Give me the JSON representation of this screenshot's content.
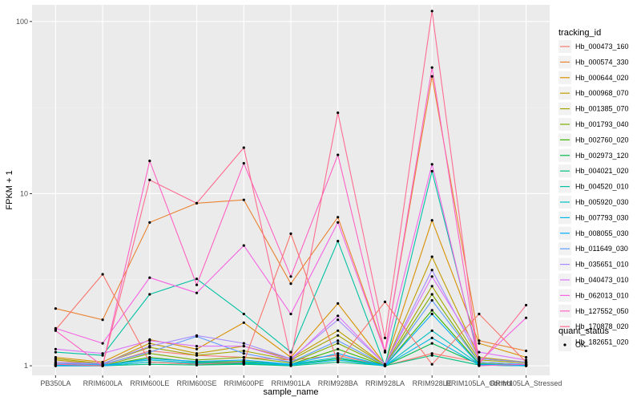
{
  "chart_data": {
    "type": "line",
    "xlabel": "sample_name",
    "ylabel": "FPKM + 1",
    "yscale": "log10",
    "ylim": [
      0.88,
      125
    ],
    "yticks": [
      1,
      10,
      100
    ],
    "ytick_labels": [
      "1",
      "10",
      "100"
    ],
    "background": "#ebebeb",
    "grid": true,
    "legend_position": "right",
    "categories": [
      "PB350LA",
      "RRIM600LA",
      "RRIM600LE",
      "RRIM600SE",
      "RRIM600PE",
      "RRIM901LA",
      "RRIM928BA",
      "RRIM928LA",
      "RRIM928LE",
      "RRIM105LA_Control",
      "RRIM105LA_Stressed"
    ],
    "series_legend_title": "tracking_id",
    "series": [
      {
        "name": "Hb_000473_160",
        "color": "#F8766D",
        "values": [
          1.05,
          1.01,
          1.22,
          1.15,
          1.12,
          1.08,
          1.15,
          1.0,
          1.18,
          1.05,
          1.02
        ]
      },
      {
        "name": "Hb_000574_330",
        "color": "#EA8331",
        "values": [
          2.15,
          1.85,
          6.8,
          8.8,
          9.2,
          3.0,
          7.3,
          1.22,
          48.0,
          1.4,
          1.22
        ]
      },
      {
        "name": "Hb_000644_020",
        "color": "#D89000",
        "values": [
          1.12,
          1.05,
          1.42,
          1.25,
          1.78,
          1.12,
          2.3,
          1.02,
          7.0,
          1.35,
          1.12
        ]
      },
      {
        "name": "Hb_000968_070",
        "color": "#C09B00",
        "values": [
          1.08,
          1.02,
          1.35,
          1.18,
          1.3,
          1.1,
          1.6,
          1.01,
          4.3,
          1.12,
          1.05
        ]
      },
      {
        "name": "Hb_001385_070",
        "color": "#A3A500",
        "values": [
          1.1,
          1.03,
          1.28,
          1.15,
          1.22,
          1.08,
          1.5,
          1.01,
          2.9,
          1.08,
          1.04
        ]
      },
      {
        "name": "Hb_001793_040",
        "color": "#7CAE00",
        "values": [
          1.02,
          1.0,
          1.18,
          1.08,
          1.12,
          1.04,
          1.35,
          1.0,
          2.6,
          1.05,
          1.02
        ]
      },
      {
        "name": "Hb_002760_020",
        "color": "#39B600",
        "values": [
          1.01,
          1.0,
          1.12,
          1.05,
          1.06,
          1.02,
          1.25,
          1.0,
          2.1,
          1.03,
          1.01
        ]
      },
      {
        "name": "Hb_002973_120",
        "color": "#00BB4E",
        "values": [
          1.0,
          1.0,
          1.05,
          1.02,
          1.03,
          1.01,
          1.1,
          1.0,
          1.35,
          1.02,
          1.0
        ]
      },
      {
        "name": "Hb_004021_020",
        "color": "#00BF7D",
        "values": [
          1.0,
          1.0,
          1.02,
          1.01,
          1.02,
          1.0,
          1.05,
          1.0,
          1.15,
          1.01,
          1.0
        ]
      },
      {
        "name": "Hb_004520_010",
        "color": "#00C1A3",
        "values": [
          1.2,
          1.15,
          2.6,
          3.2,
          2.0,
          1.2,
          5.3,
          1.0,
          13.5,
          1.1,
          1.05
        ]
      },
      {
        "name": "Hb_005920_030",
        "color": "#00BFC4",
        "values": [
          1.02,
          1.01,
          1.08,
          1.04,
          1.05,
          1.02,
          1.12,
          1.0,
          1.6,
          1.02,
          1.01
        ]
      },
      {
        "name": "Hb_007793_030",
        "color": "#00B8E5",
        "values": [
          1.01,
          1.0,
          1.05,
          1.03,
          1.04,
          1.01,
          1.08,
          1.0,
          1.45,
          1.01,
          1.0
        ]
      },
      {
        "name": "Hb_008055_030",
        "color": "#00ABFD",
        "values": [
          1.0,
          1.0,
          1.1,
          1.06,
          1.08,
          1.02,
          1.18,
          1.0,
          2.0,
          1.02,
          1.01
        ]
      },
      {
        "name": "Hb_011649_030",
        "color": "#619CFF",
        "values": [
          1.03,
          1.02,
          1.2,
          1.48,
          1.18,
          1.05,
          1.4,
          1.01,
          2.4,
          1.05,
          1.02
        ]
      },
      {
        "name": "Hb_035651_010",
        "color": "#A58AFF",
        "values": [
          1.05,
          1.03,
          1.3,
          1.5,
          1.35,
          1.1,
          1.85,
          1.02,
          3.6,
          1.1,
          1.05
        ]
      },
      {
        "name": "Hb_040473_010",
        "color": "#DB72FB",
        "values": [
          1.25,
          1.18,
          1.4,
          1.3,
          1.3,
          1.08,
          1.95,
          1.02,
          3.3,
          1.2,
          1.08
        ]
      },
      {
        "name": "Hb_062013_010",
        "color": "#F564E3",
        "values": [
          1.65,
          1.35,
          3.25,
          2.65,
          5.0,
          2.0,
          6.8,
          1.2,
          14.8,
          1.05,
          1.9
        ]
      },
      {
        "name": "Hb_127552_050",
        "color": "#FF61C3",
        "values": [
          1.6,
          1.0,
          15.5,
          2.95,
          15.0,
          3.3,
          16.8,
          1.2,
          54.0,
          1.0,
          1.02
        ]
      },
      {
        "name": "Hb_170878_020",
        "color": "#FF6C91",
        "values": [
          1.02,
          1.0,
          12.0,
          8.8,
          18.5,
          1.1,
          29.5,
          1.45,
          115.0,
          1.02,
          2.25
        ]
      },
      {
        "name": "Hb_182651_020",
        "color": "#F8766D",
        "values": [
          1.62,
          3.4,
          1.05,
          1.02,
          1.05,
          5.85,
          1.05,
          2.35,
          1.02,
          2.0,
          1.05
        ]
      }
    ],
    "point_legend_title": "quant_status",
    "point_legend_items": [
      "OK"
    ]
  }
}
